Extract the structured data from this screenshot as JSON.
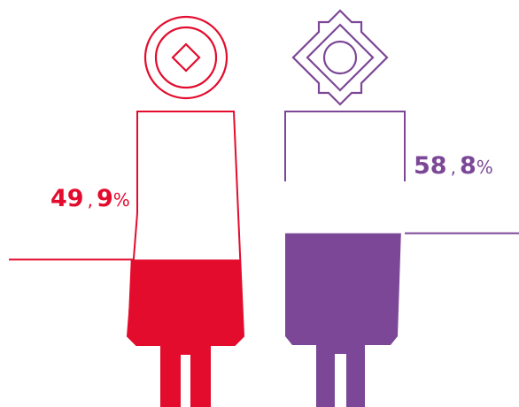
{
  "chart_data": {
    "type": "pictograph",
    "series": [
      {
        "value": 49.9,
        "int_label": "49",
        "sep_label": ",",
        "dec_label": "9",
        "pct_label": "%",
        "color": "#e30c2d",
        "icon": "female-figure-icon"
      },
      {
        "value": 58.8,
        "int_label": "58",
        "sep_label": ",",
        "dec_label": "8",
        "pct_label": "%",
        "color": "#7b4796",
        "icon": "male-figure-icon"
      }
    ],
    "ylim": [
      0,
      100
    ]
  }
}
